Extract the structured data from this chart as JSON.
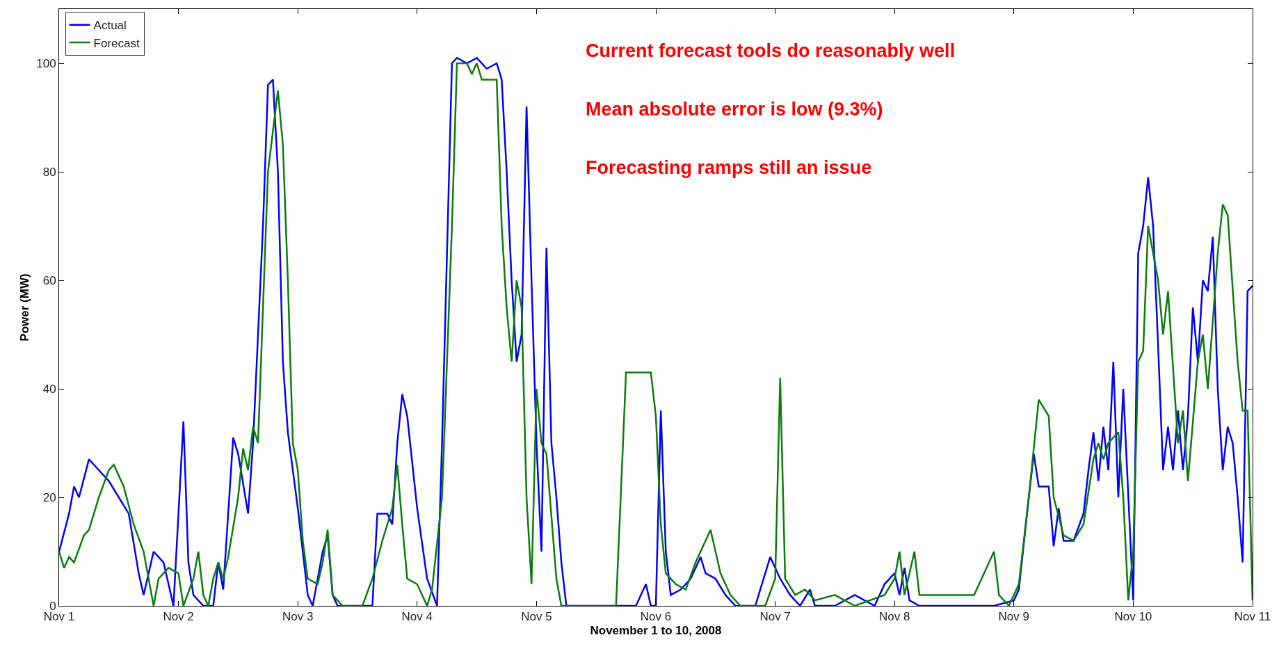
{
  "chart_data": {
    "type": "line",
    "xlabel": "November 1 to 10, 2008",
    "ylabel": "Power (MW)",
    "annotations": [
      "Current forecast tools do reasonably well",
      "Mean absolute error is low (9.3%)",
      "Forecasting ramps still an issue"
    ],
    "xlim": [
      "2008-11-01T00:00",
      "2008-11-11T00:00"
    ],
    "xticks": [
      {
        "value": "2008-11-01",
        "label": "Nov 1"
      },
      {
        "value": "2008-11-02",
        "label": "Nov 2"
      },
      {
        "value": "2008-11-03",
        "label": "Nov 3"
      },
      {
        "value": "2008-11-04",
        "label": "Nov 4"
      },
      {
        "value": "2008-11-05",
        "label": "Nov 5"
      },
      {
        "value": "2008-11-06",
        "label": "Nov 6"
      },
      {
        "value": "2008-11-07",
        "label": "Nov 7"
      },
      {
        "value": "2008-11-08",
        "label": "Nov 8"
      },
      {
        "value": "2008-11-09",
        "label": "Nov 9"
      },
      {
        "value": "2008-11-10",
        "label": "Nov 10"
      },
      {
        "value": "2008-11-11",
        "label": "Nov 11"
      }
    ],
    "ylim": [
      0,
      110
    ],
    "yticks": [
      0,
      20,
      40,
      60,
      80,
      100
    ],
    "legend": "top left",
    "line_style": "solid",
    "series": [
      {
        "name": "Actual",
        "color": "#0000ff",
        "x": [
          "2008-11-01T00:00",
          "2008-11-01T02:00",
          "2008-11-01T03:00",
          "2008-11-01T04:00",
          "2008-11-01T06:00",
          "2008-11-01T08:00",
          "2008-11-01T10:00",
          "2008-11-01T12:00",
          "2008-11-01T14:00",
          "2008-11-01T16:00",
          "2008-11-01T17:00",
          "2008-11-01T19:00",
          "2008-11-01T21:00",
          "2008-11-01T23:00",
          "2008-11-02T01:00",
          "2008-11-02T02:00",
          "2008-11-02T03:00",
          "2008-11-02T05:00",
          "2008-11-02T07:00",
          "2008-11-02T08:00",
          "2008-11-02T09:00",
          "2008-11-02T11:00",
          "2008-11-02T12:00",
          "2008-11-02T14:00",
          "2008-11-02T15:00",
          "2008-11-02T17:00",
          "2008-11-02T18:00",
          "2008-11-02T19:00",
          "2008-11-02T20:00",
          "2008-11-02T21:00",
          "2008-11-02T22:00",
          "2008-11-03T00:00",
          "2008-11-03T02:00",
          "2008-11-03T03:00",
          "2008-11-03T05:00",
          "2008-11-03T06:00",
          "2008-11-03T07:00",
          "2008-11-03T08:00",
          "2008-11-03T15:00",
          "2008-11-03T16:00",
          "2008-11-03T18:00",
          "2008-11-03T19:00",
          "2008-11-03T20:00",
          "2008-11-03T21:00",
          "2008-11-03T22:00",
          "2008-11-04T00:00",
          "2008-11-04T02:00",
          "2008-11-04T04:00",
          "2008-11-04T05:00",
          "2008-11-04T07:00",
          "2008-11-04T08:00",
          "2008-11-04T10:00",
          "2008-11-04T12:00",
          "2008-11-04T14:00",
          "2008-11-04T16:00",
          "2008-11-04T17:00",
          "2008-11-04T18:00",
          "2008-11-04T19:00",
          "2008-11-04T20:00",
          "2008-11-04T21:00",
          "2008-11-04T22:00",
          "2008-11-04T23:00",
          "2008-11-05T00:00",
          "2008-11-05T01:00",
          "2008-11-05T02:00",
          "2008-11-05T03:00",
          "2008-11-05T04:00",
          "2008-11-05T05:00",
          "2008-11-05T06:00",
          "2008-11-05T20:00",
          "2008-11-05T22:00",
          "2008-11-05T23:00",
          "2008-11-06T00:00",
          "2008-11-06T01:00",
          "2008-11-06T02:00",
          "2008-11-06T03:00",
          "2008-11-06T05:00",
          "2008-11-06T07:00",
          "2008-11-06T09:00",
          "2008-11-06T10:00",
          "2008-11-06T12:00",
          "2008-11-06T14:00",
          "2008-11-06T16:00",
          "2008-11-06T20:00",
          "2008-11-06T22:00",
          "2008-11-06T23:00",
          "2008-11-07T01:00",
          "2008-11-07T03:00",
          "2008-11-07T05:00",
          "2008-11-07T07:00",
          "2008-11-07T08:00",
          "2008-11-07T12:00",
          "2008-11-07T16:00",
          "2008-11-07T20:00",
          "2008-11-07T22:00",
          "2008-11-08T00:00",
          "2008-11-08T01:00",
          "2008-11-08T02:00",
          "2008-11-08T03:00",
          "2008-11-08T05:00",
          "2008-11-08T20:00",
          "2008-11-09T00:00",
          "2008-11-09T01:00",
          "2008-11-09T03:00",
          "2008-11-09T04:00",
          "2008-11-09T05:00",
          "2008-11-09T07:00",
          "2008-11-09T08:00",
          "2008-11-09T09:00",
          "2008-11-09T10:00",
          "2008-11-09T12:00",
          "2008-11-09T14:00",
          "2008-11-09T15:00",
          "2008-11-09T16:00",
          "2008-11-09T17:00",
          "2008-11-09T18:00",
          "2008-11-09T19:00",
          "2008-11-09T20:00",
          "2008-11-09T21:00",
          "2008-11-09T22:00",
          "2008-11-10T00:00",
          "2008-11-10T01:00",
          "2008-11-10T02:00",
          "2008-11-10T03:00",
          "2008-11-10T04:00",
          "2008-11-10T05:00",
          "2008-11-10T06:00",
          "2008-11-10T07:00",
          "2008-11-10T08:00",
          "2008-11-10T09:00",
          "2008-11-10T10:00",
          "2008-11-10T11:00",
          "2008-11-10T12:00",
          "2008-11-10T13:00",
          "2008-11-10T14:00",
          "2008-11-10T15:00",
          "2008-11-10T16:00",
          "2008-11-10T17:00",
          "2008-11-10T18:00",
          "2008-11-10T19:00",
          "2008-11-10T20:00",
          "2008-11-10T21:00",
          "2008-11-10T22:00",
          "2008-11-10T23:00",
          "2008-11-11T00:00"
        ],
        "values": [
          10,
          17,
          22,
          20,
          27,
          25,
          23,
          20,
          17,
          6,
          2,
          10,
          8,
          0,
          34,
          8,
          2,
          0,
          0,
          8,
          3,
          31,
          28,
          17,
          30,
          70,
          96,
          97,
          80,
          45,
          32,
          18,
          2,
          0,
          10,
          13,
          2,
          0,
          0,
          17,
          17,
          15,
          30,
          39,
          35,
          18,
          5,
          0,
          30,
          100,
          101,
          100,
          101,
          99,
          100,
          97,
          80,
          60,
          45,
          50,
          92,
          60,
          30,
          10,
          66,
          30,
          20,
          8,
          0,
          0,
          4,
          0,
          0,
          36,
          10,
          2,
          3,
          5,
          9,
          6,
          5,
          2,
          0,
          0,
          6,
          9,
          5,
          2,
          0,
          3,
          0,
          0,
          2,
          0,
          4,
          6,
          2,
          7,
          1,
          0,
          0,
          1,
          3,
          20,
          28,
          22,
          22,
          11,
          18,
          12,
          12,
          17,
          25,
          32,
          23,
          33,
          25,
          45,
          20,
          40,
          1,
          65,
          70,
          79,
          70,
          48,
          25,
          33,
          25,
          36,
          25,
          35,
          55,
          45,
          60,
          58,
          68,
          40,
          25,
          33,
          30,
          20,
          8,
          58,
          59
        ]
      },
      {
        "name": "Forecast",
        "color": "#0a7d0a",
        "x": [
          "2008-11-01T00:00",
          "2008-11-01T01:00",
          "2008-11-01T02:00",
          "2008-11-01T03:00",
          "2008-11-01T05:00",
          "2008-11-01T06:00",
          "2008-11-01T08:00",
          "2008-11-01T10:00",
          "2008-11-01T11:00",
          "2008-11-01T13:00",
          "2008-11-01T15:00",
          "2008-11-01T17:00",
          "2008-11-01T18:00",
          "2008-11-01T19:00",
          "2008-11-01T20:00",
          "2008-11-01T22:00",
          "2008-11-02T00:00",
          "2008-11-02T01:00",
          "2008-11-02T03:00",
          "2008-11-02T04:00",
          "2008-11-02T05:00",
          "2008-11-02T06:00",
          "2008-11-02T07:00",
          "2008-11-02T08:00",
          "2008-11-02T09:00",
          "2008-11-02T10:00",
          "2008-11-02T12:00",
          "2008-11-02T13:00",
          "2008-11-02T14:00",
          "2008-11-02T15:00",
          "2008-11-02T16:00",
          "2008-11-02T17:00",
          "2008-11-02T18:00",
          "2008-11-02T20:00",
          "2008-11-02T21:00",
          "2008-11-02T22:00",
          "2008-11-02T23:00",
          "2008-11-03T00:00",
          "2008-11-03T01:00",
          "2008-11-03T02:00",
          "2008-11-03T04:00",
          "2008-11-03T05:00",
          "2008-11-03T06:00",
          "2008-11-03T07:00",
          "2008-11-03T09:00",
          "2008-11-03T13:00",
          "2008-11-03T15:00",
          "2008-11-03T17:00",
          "2008-11-03T18:00",
          "2008-11-03T19:00",
          "2008-11-03T20:00",
          "2008-11-03T21:00",
          "2008-11-03T22:00",
          "2008-11-04T00:00",
          "2008-11-04T02:00",
          "2008-11-04T03:00",
          "2008-11-04T05:00",
          "2008-11-04T07:00",
          "2008-11-04T08:00",
          "2008-11-04T10:00",
          "2008-11-04T11:00",
          "2008-11-04T12:00",
          "2008-11-04T13:00",
          "2008-11-04T16:00",
          "2008-11-04T17:00",
          "2008-11-04T18:00",
          "2008-11-04T19:00",
          "2008-11-04T20:00",
          "2008-11-04T21:00",
          "2008-11-04T22:00",
          "2008-11-04T23:00",
          "2008-11-05T00:00",
          "2008-11-05T01:00",
          "2008-11-05T02:00",
          "2008-11-05T04:00",
          "2008-11-05T05:00",
          "2008-11-05T16:00",
          "2008-11-05T18:00",
          "2008-11-05T23:00",
          "2008-11-06T00:00",
          "2008-11-06T01:00",
          "2008-11-06T02:00",
          "2008-11-06T04:00",
          "2008-11-06T06:00",
          "2008-11-06T08:00",
          "2008-11-06T11:00",
          "2008-11-06T13:00",
          "2008-11-06T15:00",
          "2008-11-06T17:00",
          "2008-11-06T22:00",
          "2008-11-07T00:00",
          "2008-11-07T01:00",
          "2008-11-07T02:00",
          "2008-11-07T04:00",
          "2008-11-07T06:00",
          "2008-11-07T08:00",
          "2008-11-07T12:00",
          "2008-11-07T16:00",
          "2008-11-07T22:00",
          "2008-11-08T00:00",
          "2008-11-08T01:00",
          "2008-11-08T02:00",
          "2008-11-08T04:00",
          "2008-11-08T05:00",
          "2008-11-08T16:00",
          "2008-11-08T20:00",
          "2008-11-08T21:00",
          "2008-11-08T23:00",
          "2008-11-09T01:00",
          "2008-11-09T03:00",
          "2008-11-09T05:00",
          "2008-11-09T07:00",
          "2008-11-09T08:00",
          "2008-11-09T10:00",
          "2008-11-09T12:00",
          "2008-11-09T14:00",
          "2008-11-09T16:00",
          "2008-11-09T17:00",
          "2008-11-09T18:00",
          "2008-11-09T19:00",
          "2008-11-09T21:00",
          "2008-11-09T22:00",
          "2008-11-09T23:00",
          "2008-11-10T00:00",
          "2008-11-10T01:00",
          "2008-11-10T02:00",
          "2008-11-10T03:00",
          "2008-11-10T05:00",
          "2008-11-10T06:00",
          "2008-11-10T07:00",
          "2008-11-10T09:00",
          "2008-11-10T10:00",
          "2008-11-10T11:00",
          "2008-11-10T13:00",
          "2008-11-10T14:00",
          "2008-11-10T15:00",
          "2008-11-10T17:00",
          "2008-11-10T18:00",
          "2008-11-10T19:00",
          "2008-11-10T21:00",
          "2008-11-10T22:00",
          "2008-11-10T23:00",
          "2008-11-11T00:00"
        ],
        "values": [
          10,
          7,
          9,
          8,
          13,
          14,
          20,
          25,
          26,
          22,
          15,
          10,
          5,
          0,
          5,
          7,
          6,
          0,
          5,
          10,
          2,
          0,
          5,
          8,
          5,
          9,
          20,
          29,
          25,
          33,
          30,
          55,
          80,
          95,
          85,
          60,
          30,
          25,
          12,
          5,
          4,
          8,
          14,
          2,
          0,
          0,
          5,
          12,
          15,
          18,
          26,
          15,
          5,
          4,
          0,
          3,
          20,
          70,
          100,
          100,
          98,
          100,
          97,
          97,
          70,
          55,
          45,
          60,
          55,
          20,
          4,
          40,
          30,
          28,
          5,
          0,
          0,
          43,
          43,
          35,
          15,
          6,
          4,
          3,
          8,
          14,
          6,
          2,
          0,
          0,
          5,
          42,
          5,
          2,
          3,
          1,
          2,
          0,
          2,
          5,
          10,
          2,
          10,
          2,
          2,
          10,
          2,
          0,
          4,
          20,
          38,
          35,
          20,
          13,
          12,
          15,
          27,
          30,
          27,
          30,
          32,
          20,
          1,
          10,
          45,
          47,
          70,
          60,
          50,
          58,
          30,
          36,
          23,
          45,
          50,
          40,
          65,
          74,
          72,
          45,
          36,
          36,
          1
        ]
      }
    ]
  }
}
